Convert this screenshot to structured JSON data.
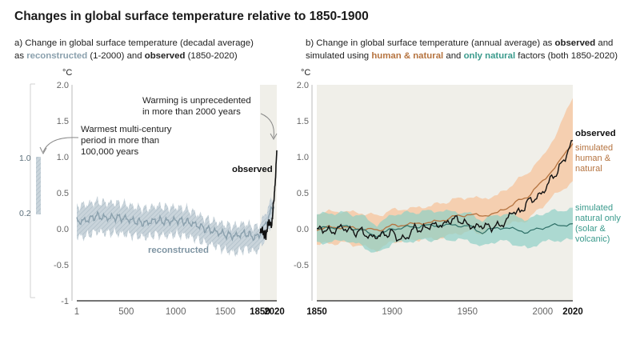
{
  "title": "Changes in global surface temperature relative to 1850-1900",
  "panel_a": {
    "subtitle_line1": "a) Change in global surface temperature (decadal average)",
    "subtitle_prefix": "as",
    "subtitle_reconstructed": "reconstructed",
    "subtitle_mid": "(1-2000) and",
    "subtitle_observed": "observed",
    "subtitle_end": "(1850-2020)",
    "unit": "°C",
    "annotation_warming": [
      "Warming is unprecedented",
      "in more than 2000 years"
    ],
    "annotation_warmest": [
      "Warmest multi-century",
      "period in more than",
      "100,000 years"
    ],
    "label_observed": "observed",
    "label_reconstructed": "reconstructed",
    "range_bar_top": "1.0",
    "range_bar_bottom": "0.2"
  },
  "panel_b": {
    "subtitle_line1_a": "b) Change in global surface temperature (annual average) as",
    "subtitle_line1_b": "observed",
    "subtitle_line1_c": "and",
    "subtitle_line2_a": "simulated using",
    "subtitle_line2_human": "human & natural",
    "subtitle_line2_b": "and",
    "subtitle_line2_nat": "only natural",
    "subtitle_line2_c": "factors (both 1850-2020)",
    "unit": "°C",
    "label_observed": "observed",
    "label_human": [
      "simulated",
      "human &",
      "natural"
    ],
    "label_natural": [
      "simulated",
      "natural only",
      "(solar &",
      "volcanic)"
    ]
  },
  "colors": {
    "reconstructed": "#8aa0ad",
    "reconstructed_band": "#c3cfd7",
    "observed": "#111111",
    "human": "#b5733f",
    "human_band": "#f6c9a6",
    "natural": "#3a9a8c",
    "natural_band": "#8fd0c6",
    "panel_shade": "#f0efe9"
  },
  "chart_data": [
    {
      "type": "line",
      "title": "a) Change in global surface temperature (decadal average)",
      "ylabel": "°C",
      "xlim": [
        1,
        2020
      ],
      "ylim": [
        -1,
        2
      ],
      "yticks": [
        "2.0",
        "1.5",
        "1.0",
        "0.5",
        "0.0",
        "-0.5",
        "-1"
      ],
      "xticks": [
        "1",
        "500",
        "1000",
        "1500",
        "1850",
        "2020"
      ],
      "shaded_period": [
        1850,
        2020
      ],
      "series": [
        {
          "name": "reconstructed",
          "x": [
            1,
            100,
            200,
            300,
            400,
            500,
            600,
            700,
            800,
            900,
            1000,
            1100,
            1200,
            1300,
            1400,
            1500,
            1600,
            1700,
            1800,
            1850,
            1900,
            2000
          ],
          "values": [
            0.1,
            0.12,
            0.18,
            0.15,
            0.16,
            0.14,
            0.1,
            0.08,
            0.12,
            0.1,
            0.12,
            0.1,
            0.06,
            0.0,
            -0.04,
            -0.08,
            -0.1,
            -0.06,
            -0.12,
            -0.08,
            0.05,
            0.36
          ],
          "upper": [
            0.32,
            0.34,
            0.38,
            0.36,
            0.36,
            0.34,
            0.3,
            0.28,
            0.32,
            0.3,
            0.3,
            0.28,
            0.22,
            0.14,
            0.1,
            0.06,
            0.04,
            0.08,
            0.02,
            0.06,
            0.2,
            0.5
          ],
          "lower": [
            -0.12,
            -0.1,
            -0.04,
            -0.06,
            -0.06,
            -0.08,
            -0.1,
            -0.12,
            -0.08,
            -0.1,
            -0.08,
            -0.1,
            -0.14,
            -0.2,
            -0.24,
            -0.3,
            -0.34,
            -0.28,
            -0.32,
            -0.28,
            -0.12,
            0.2
          ]
        },
        {
          "name": "observed",
          "x": [
            1850,
            1860,
            1870,
            1880,
            1890,
            1900,
            1910,
            1920,
            1930,
            1940,
            1950,
            1960,
            1970,
            1980,
            1990,
            2000,
            2010,
            2020
          ],
          "values": [
            -0.02,
            -0.05,
            0.0,
            -0.03,
            -0.1,
            -0.05,
            -0.12,
            -0.02,
            0.05,
            0.1,
            0.08,
            0.05,
            0.05,
            0.25,
            0.4,
            0.55,
            0.8,
            1.09
          ]
        }
      ]
    },
    {
      "type": "line",
      "title": "b) Change in global surface temperature (annual average)",
      "ylabel": "°C",
      "xlim": [
        1850,
        2020
      ],
      "ylim": [
        -1,
        2
      ],
      "yticks": [
        "2.0",
        "1.5",
        "1.0",
        "0.5",
        "0.0",
        "-0.5"
      ],
      "xticks": [
        "1850",
        "1900",
        "1950",
        "2000",
        "2020"
      ],
      "series": [
        {
          "name": "simulated human & natural",
          "x": [
            1850,
            1860,
            1870,
            1880,
            1890,
            1900,
            1910,
            1920,
            1930,
            1940,
            1950,
            1960,
            1970,
            1980,
            1990,
            2000,
            2010,
            2020
          ],
          "values": [
            0.0,
            0.02,
            0.02,
            0.0,
            -0.02,
            0.04,
            0.06,
            0.08,
            0.1,
            0.16,
            0.2,
            0.18,
            0.22,
            0.34,
            0.45,
            0.66,
            0.9,
            1.2
          ],
          "upper": [
            0.22,
            0.24,
            0.24,
            0.22,
            0.18,
            0.26,
            0.28,
            0.3,
            0.34,
            0.4,
            0.44,
            0.42,
            0.46,
            0.62,
            0.78,
            1.0,
            1.35,
            1.85
          ],
          "lower": [
            -0.22,
            -0.2,
            -0.2,
            -0.24,
            -0.3,
            -0.18,
            -0.16,
            -0.14,
            -0.14,
            -0.08,
            -0.04,
            -0.06,
            0.0,
            0.08,
            0.12,
            0.32,
            0.5,
            0.65
          ]
        },
        {
          "name": "simulated natural only (solar & volcanic)",
          "x": [
            1850,
            1860,
            1870,
            1880,
            1890,
            1900,
            1910,
            1920,
            1930,
            1940,
            1950,
            1960,
            1970,
            1980,
            1990,
            2000,
            2010,
            2020
          ],
          "values": [
            0.0,
            0.02,
            0.03,
            -0.02,
            -0.1,
            0.0,
            0.02,
            0.04,
            0.05,
            0.05,
            0.04,
            -0.05,
            0.02,
            0.0,
            -0.05,
            0.02,
            0.05,
            0.06
          ],
          "upper": [
            0.2,
            0.22,
            0.22,
            0.18,
            0.05,
            0.2,
            0.22,
            0.24,
            0.25,
            0.24,
            0.22,
            0.12,
            0.2,
            0.2,
            0.12,
            0.22,
            0.25,
            0.28
          ],
          "lower": [
            -0.2,
            -0.18,
            -0.16,
            -0.24,
            -0.35,
            -0.2,
            -0.18,
            -0.16,
            -0.15,
            -0.15,
            -0.16,
            -0.25,
            -0.16,
            -0.2,
            -0.28,
            -0.18,
            -0.16,
            -0.16
          ]
        },
        {
          "name": "observed",
          "x": [
            1850,
            1855,
            1860,
            1865,
            1870,
            1875,
            1880,
            1885,
            1890,
            1895,
            1900,
            1905,
            1910,
            1915,
            1920,
            1925,
            1930,
            1935,
            1940,
            1945,
            1950,
            1955,
            1960,
            1965,
            1970,
            1975,
            1980,
            1985,
            1990,
            1995,
            2000,
            2005,
            2010,
            2015,
            2020
          ],
          "values": [
            -0.02,
            0.0,
            -0.05,
            0.02,
            0.0,
            -0.05,
            -0.03,
            -0.12,
            -0.1,
            -0.08,
            -0.05,
            -0.15,
            -0.12,
            0.02,
            -0.02,
            0.05,
            0.05,
            0.06,
            0.14,
            0.12,
            0.06,
            0.02,
            0.05,
            0.02,
            0.04,
            0.08,
            0.25,
            0.22,
            0.38,
            0.42,
            0.5,
            0.68,
            0.8,
            1.0,
            1.22
          ]
        }
      ]
    }
  ]
}
